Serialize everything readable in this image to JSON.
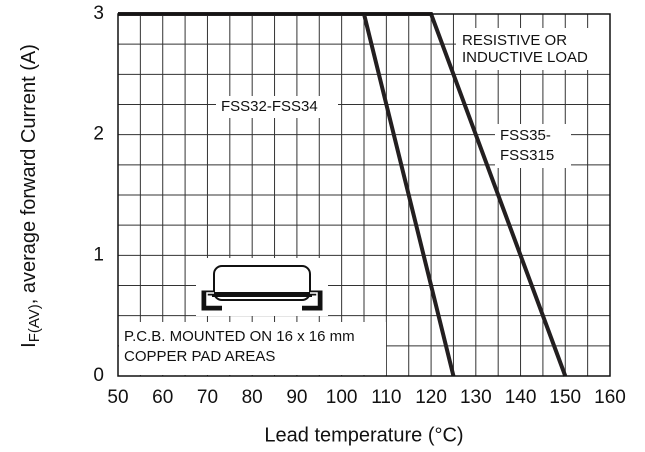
{
  "chart_data": {
    "type": "line",
    "xlabel": "Lead temperature (°C)",
    "ylabel": {
      "main": "I",
      "subscript": "F(AV)",
      "rest": ", average forward Current (A)"
    },
    "series": [
      {
        "name": "FSS32-FSS34",
        "color": "#231f20",
        "x": [
          50,
          105,
          125
        ],
        "values": [
          3,
          3,
          0
        ]
      },
      {
        "name": "FSS35-FSS315",
        "color": "#231f20",
        "x": [
          50,
          120,
          150
        ],
        "values": [
          3,
          3,
          0
        ]
      }
    ],
    "xlim": [
      50,
      160
    ],
    "ylim": [
      0,
      3
    ],
    "xticks": [
      50,
      60,
      70,
      80,
      90,
      100,
      110,
      120,
      130,
      140,
      150,
      160
    ],
    "yticks": [
      0,
      1,
      2,
      3
    ],
    "xminorticks": [
      55,
      65,
      75,
      85,
      95,
      105,
      115,
      125,
      135,
      145,
      155
    ],
    "yminorticks": [
      0.25,
      0.5,
      0.75,
      1.25,
      1.5,
      1.75,
      2.25,
      2.5,
      2.75
    ],
    "grid": true,
    "annotations": {
      "load": [
        "RESISTIVE OR",
        "INDUCTIVE LOAD"
      ],
      "series_a": "FSS32-FSS34",
      "series_b": [
        "FSS35-",
        "FSS315"
      ],
      "pcb": [
        "P.C.B. MOUNTED ON 16 x 16 mm",
        "COPPER PAD AREAS"
      ]
    }
  }
}
